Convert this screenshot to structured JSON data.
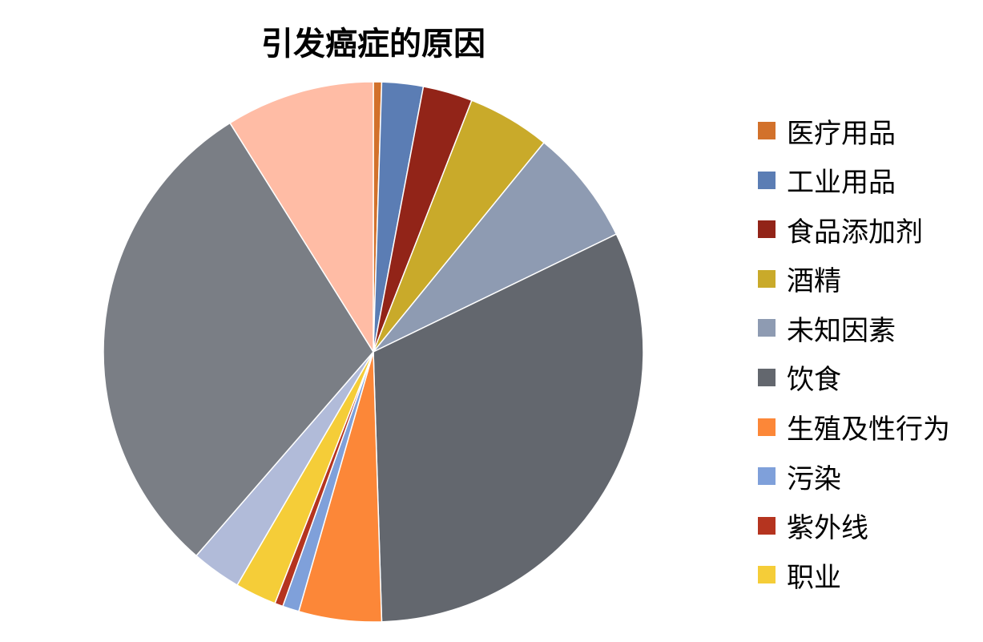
{
  "chart_data": {
    "type": "pie",
    "title": "引发癌症的原因",
    "legend_position": "right",
    "slices": [
      {
        "name": "医疗用品",
        "value": 0.5,
        "color": "#D2712B"
      },
      {
        "name": "工业用品",
        "value": 2.5,
        "color": "#5B7DB4"
      },
      {
        "name": "食品添加剂",
        "value": 3.0,
        "color": "#922418"
      },
      {
        "name": "酒精",
        "value": 5.0,
        "color": "#C9AA2A"
      },
      {
        "name": "未知因素",
        "value": 7.0,
        "color": "#8E9BB2"
      },
      {
        "name": "饮食",
        "value": 32.0,
        "color": "#63676E"
      },
      {
        "name": "生殖及性行为",
        "value": 5.0,
        "color": "#FC8738"
      },
      {
        "name": "污染",
        "value": 1.0,
        "color": "#7FA0DA"
      },
      {
        "name": "紫外线",
        "value": 0.5,
        "color": "#B5341F"
      },
      {
        "name": "职业",
        "value": 2.5,
        "color": "#F5CD38"
      },
      {
        "name": "",
        "value": 3.0,
        "color": "#B1BBD9"
      },
      {
        "name": "",
        "value": 30.0,
        "color": "#7A7E85"
      },
      {
        "name": "",
        "value": 9.0,
        "color": "#FFBCA5"
      }
    ]
  }
}
